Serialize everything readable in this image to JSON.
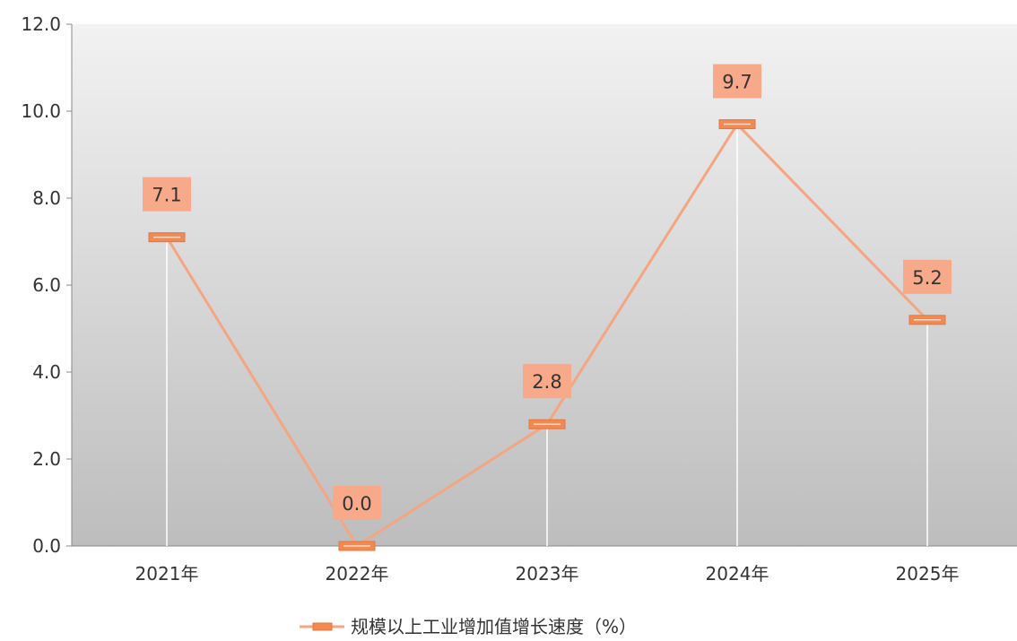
{
  "chart_data": {
    "type": "line",
    "categories": [
      "2021年",
      "2022年",
      "2023年",
      "2024年",
      "2025年"
    ],
    "series": [
      {
        "name": "规模以上工业增加值增长速度（%）",
        "values": [
          7.1,
          0.0,
          2.8,
          9.7,
          5.2
        ]
      }
    ],
    "data_labels": [
      "7.1",
      "0.0",
      "2.8",
      "9.7",
      "5.2"
    ],
    "y_ticks": [
      "0.0",
      "2.0",
      "4.0",
      "6.0",
      "8.0",
      "10.0",
      "12.0"
    ],
    "ylim": [
      0,
      12
    ],
    "drop_lines": true,
    "legend_position": "bottom",
    "colors": {
      "line": "#f4a582",
      "marker": "#f08a52",
      "marker_border": "#e8763a",
      "label_bg": "#f7a98a",
      "drop_line": "#ffffff",
      "plot_bg_top": "#f2f2f2",
      "plot_bg_bottom": "#bdbdbd"
    }
  }
}
